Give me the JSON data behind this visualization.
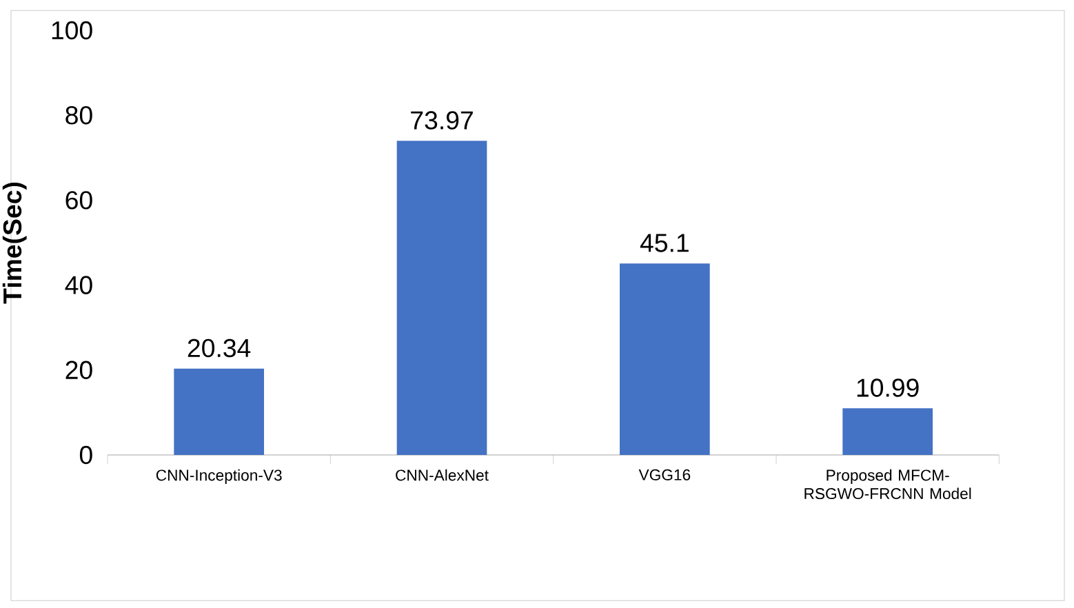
{
  "chart_data": {
    "type": "bar",
    "ylabel": "Time(Sec)",
    "categories": [
      "CNN-Inception-V3",
      "CNN-AlexNet",
      "VGG16",
      "Proposed MFCM-RSGWO-FRCNN Model"
    ],
    "values": [
      20.34,
      73.97,
      45.1,
      10.99
    ],
    "color": "#4472c4",
    "ylim": [
      0,
      100
    ],
    "yticks": [
      0,
      20,
      40,
      60,
      80,
      100
    ],
    "data_labels": true
  }
}
